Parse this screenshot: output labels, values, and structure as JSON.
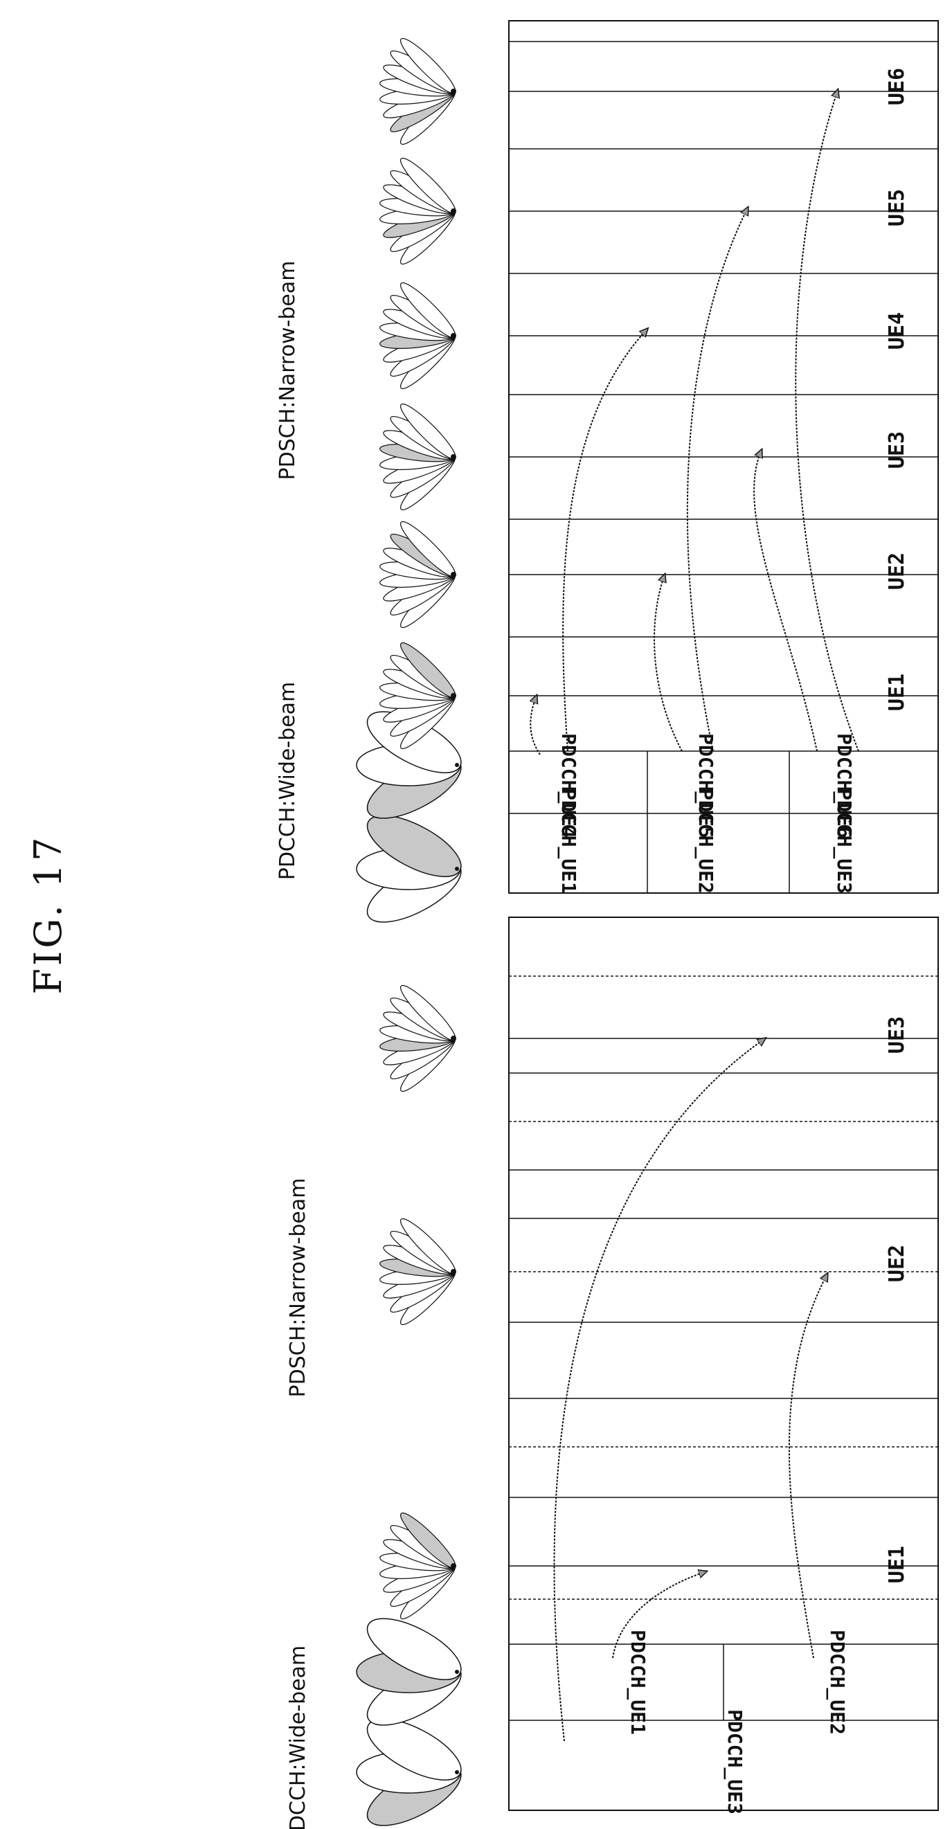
{
  "figure": {
    "title": "FIG. 17"
  },
  "lower_panel": {
    "beam_labels": {
      "wide": "PDCCH:Wide-beam",
      "narrow": "PDSCH:Narrow-beam"
    },
    "pdcch_cells": [
      "PDCCH_UE1",
      "PDCCH_UE2",
      "PDCCH_UE3"
    ],
    "ue_labels": [
      "UE1",
      "UE2",
      "UE3"
    ]
  },
  "upper_panel": {
    "beam_labels": {
      "wide": "PDCCH:Wide-beam",
      "narrow": "PDSCH:Narrow-beam"
    },
    "pdcch_cells": [
      "PDCCH_UE1",
      "PDCCH_UE2",
      "PDCCH_UE3",
      "PDCCH_UE4",
      "PDCCH_UE5",
      "PDCCH_UE6"
    ],
    "ue_labels": [
      "UE1",
      "UE2",
      "UE3",
      "UE4",
      "UE5",
      "UE6"
    ]
  },
  "colors": {
    "line": "#111111",
    "shade": "#c8c8c8",
    "background": "#ffffff"
  }
}
